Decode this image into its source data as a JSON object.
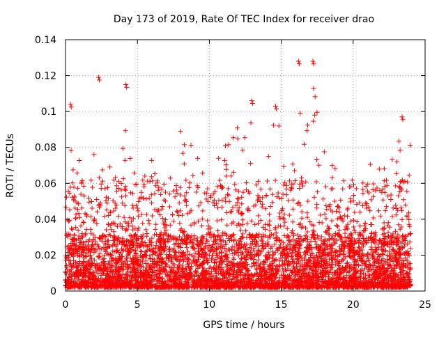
{
  "chart_data": {
    "type": "scatter",
    "title": "Day 173 of 2019, Rate Of TEC Index for receiver drao",
    "xlabel": "GPS time / hours",
    "ylabel": "ROTI / TECUs",
    "xlim": [
      0,
      25
    ],
    "ylim": [
      0,
      0.14
    ],
    "x_ticks": [
      {
        "value": 0,
        "label": "0"
      },
      {
        "value": 5,
        "label": "5"
      },
      {
        "value": 10,
        "label": "10"
      },
      {
        "value": 15,
        "label": "15"
      },
      {
        "value": 20,
        "label": "20"
      },
      {
        "value": 25,
        "label": "25"
      }
    ],
    "y_ticks": [
      {
        "value": 0,
        "label": "0"
      },
      {
        "value": 0.02,
        "label": "0.02"
      },
      {
        "value": 0.04,
        "label": "0.04"
      },
      {
        "value": 0.06,
        "label": "0.06"
      },
      {
        "value": 0.08,
        "label": "0.08"
      },
      {
        "value": 0.1,
        "label": "0.1"
      },
      {
        "value": 0.12,
        "label": "0.12"
      },
      {
        "value": 0.14,
        "label": "0.14"
      }
    ],
    "grid": true,
    "marker": "plus",
    "marker_color": "#ff0000",
    "data_range": {
      "x": [
        0,
        24
      ],
      "y": [
        0.002,
        0.128
      ]
    },
    "notable_points": [
      {
        "x": 0.35,
        "y": 0.104
      },
      {
        "x": 2.3,
        "y": 0.119
      },
      {
        "x": 4.2,
        "y": 0.115
      },
      {
        "x": 12.95,
        "y": 0.106
      },
      {
        "x": 14.6,
        "y": 0.103
      },
      {
        "x": 16.2,
        "y": 0.128
      },
      {
        "x": 17.2,
        "y": 0.128
      },
      {
        "x": 23.4,
        "y": 0.097
      }
    ],
    "activity_envelope": [
      {
        "x": 0,
        "y": 0.045
      },
      {
        "x": 0.4,
        "y": 0.085
      },
      {
        "x": 1.0,
        "y": 0.08
      },
      {
        "x": 1.5,
        "y": 0.04
      },
      {
        "x": 2.3,
        "y": 0.105
      },
      {
        "x": 2.8,
        "y": 0.075
      },
      {
        "x": 3.5,
        "y": 0.085
      },
      {
        "x": 4.2,
        "y": 0.1
      },
      {
        "x": 5.0,
        "y": 0.065
      },
      {
        "x": 6.0,
        "y": 0.075
      },
      {
        "x": 7.0,
        "y": 0.07
      },
      {
        "x": 7.8,
        "y": 0.09
      },
      {
        "x": 8.6,
        "y": 0.09
      },
      {
        "x": 9.5,
        "y": 0.075
      },
      {
        "x": 10.3,
        "y": 0.06
      },
      {
        "x": 11.0,
        "y": 0.085
      },
      {
        "x": 12.0,
        "y": 0.1
      },
      {
        "x": 13.0,
        "y": 0.1
      },
      {
        "x": 14.0,
        "y": 0.09
      },
      {
        "x": 14.6,
        "y": 0.1
      },
      {
        "x": 15.5,
        "y": 0.07
      },
      {
        "x": 16.2,
        "y": 0.1
      },
      {
        "x": 17.2,
        "y": 0.115
      },
      {
        "x": 18.0,
        "y": 0.08
      },
      {
        "x": 19.0,
        "y": 0.065
      },
      {
        "x": 20.0,
        "y": 0.06
      },
      {
        "x": 21.0,
        "y": 0.075
      },
      {
        "x": 22.0,
        "y": 0.065
      },
      {
        "x": 23.0,
        "y": 0.085
      },
      {
        "x": 24.0,
        "y": 0.085
      }
    ]
  }
}
